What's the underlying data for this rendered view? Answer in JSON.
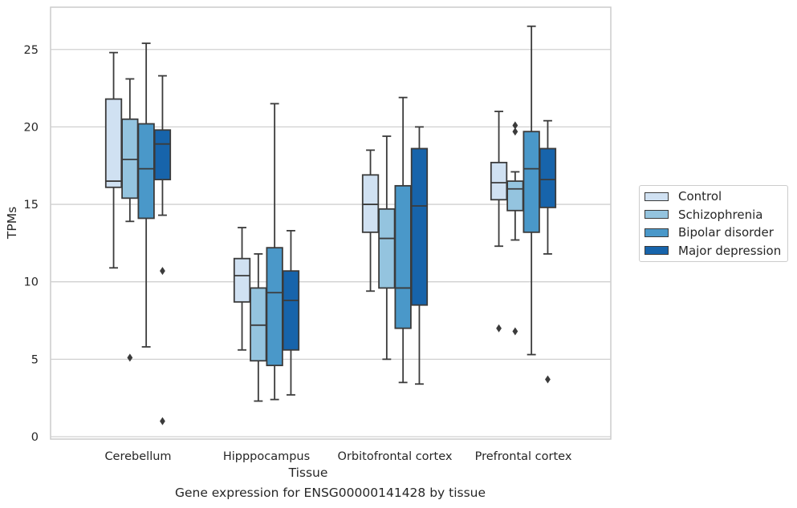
{
  "chart_data": {
    "type": "box",
    "title": "",
    "caption": "Gene expression for ENSG00000141428 by tissue",
    "xlabel": "Tissue",
    "ylabel": "TPMs",
    "ylim": [
      -0.4,
      27.8
    ],
    "yticks": [
      0,
      5,
      10,
      15,
      20,
      25
    ],
    "grid": "horizontal",
    "legend_position": "outside-right",
    "categories": [
      "Cerebellum",
      "Hipppocampus",
      "Orbitofrontal cortex",
      "Prefrontal cortex"
    ],
    "series": [
      {
        "name": "Control",
        "color": "#d0e1f2",
        "boxes": [
          {
            "whisker_low": 10.9,
            "q1": 16.1,
            "median": 16.5,
            "q3": 21.8,
            "whisker_high": 24.8,
            "outliers": []
          },
          {
            "whisker_low": 5.6,
            "q1": 8.7,
            "median": 10.4,
            "q3": 11.5,
            "whisker_high": 13.5,
            "outliers": []
          },
          {
            "whisker_low": 9.4,
            "q1": 13.2,
            "median": 15.0,
            "q3": 16.9,
            "whisker_high": 18.5,
            "outliers": []
          },
          {
            "whisker_low": 12.3,
            "q1": 15.3,
            "median": 16.4,
            "q3": 17.7,
            "whisker_high": 21.0,
            "outliers": [
              7.0
            ]
          }
        ]
      },
      {
        "name": "Schizophrenia",
        "color": "#94c4df",
        "boxes": [
          {
            "whisker_low": 13.9,
            "q1": 15.4,
            "median": 17.9,
            "q3": 20.5,
            "whisker_high": 23.1,
            "outliers": [
              5.1
            ]
          },
          {
            "whisker_low": 2.3,
            "q1": 4.9,
            "median": 7.2,
            "q3": 9.6,
            "whisker_high": 11.8,
            "outliers": []
          },
          {
            "whisker_low": 5.0,
            "q1": 9.6,
            "median": 12.8,
            "q3": 14.7,
            "whisker_high": 19.4,
            "outliers": []
          },
          {
            "whisker_low": 12.7,
            "q1": 14.6,
            "median": 16.0,
            "q3": 16.5,
            "whisker_high": 17.1,
            "outliers": [
              6.8,
              19.7,
              20.1
            ]
          }
        ]
      },
      {
        "name": "Bipolar disorder",
        "color": "#4a98c9",
        "boxes": [
          {
            "whisker_low": 5.8,
            "q1": 14.1,
            "median": 17.3,
            "q3": 20.2,
            "whisker_high": 25.4,
            "outliers": []
          },
          {
            "whisker_low": 2.4,
            "q1": 4.6,
            "median": 9.3,
            "q3": 12.2,
            "whisker_high": 21.5,
            "outliers": []
          },
          {
            "whisker_low": 3.5,
            "q1": 7.0,
            "median": 9.6,
            "q3": 16.2,
            "whisker_high": 21.9,
            "outliers": []
          },
          {
            "whisker_low": 5.3,
            "q1": 13.2,
            "median": 17.3,
            "q3": 19.7,
            "whisker_high": 26.5,
            "outliers": []
          }
        ]
      },
      {
        "name": "Major depression",
        "color": "#1764ab",
        "boxes": [
          {
            "whisker_low": 14.3,
            "q1": 16.6,
            "median": 18.9,
            "q3": 19.8,
            "whisker_high": 23.3,
            "outliers": [
              10.7,
              1.0
            ]
          },
          {
            "whisker_low": 2.7,
            "q1": 5.6,
            "median": 8.8,
            "q3": 10.7,
            "whisker_high": 13.3,
            "outliers": []
          },
          {
            "whisker_low": 3.4,
            "q1": 8.5,
            "median": 14.9,
            "q3": 18.6,
            "whisker_high": 20.0,
            "outliers": []
          },
          {
            "whisker_low": 11.8,
            "q1": 14.8,
            "median": 16.6,
            "q3": 18.6,
            "whisker_high": 20.4,
            "outliers": [
              3.7
            ]
          }
        ]
      }
    ]
  }
}
